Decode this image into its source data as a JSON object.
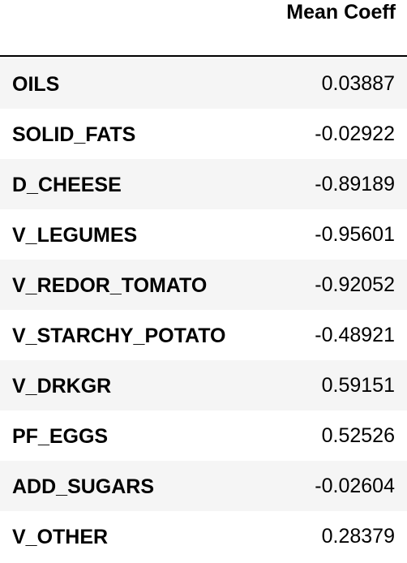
{
  "table": {
    "header": {
      "value_column": "Mean Coeff"
    },
    "rows": [
      {
        "name": "OILS",
        "value": "0.03887"
      },
      {
        "name": "SOLID_FATS",
        "value": "-0.02922"
      },
      {
        "name": "D_CHEESE",
        "value": "-0.89189"
      },
      {
        "name": "V_LEGUMES",
        "value": "-0.95601"
      },
      {
        "name": "V_REDOR_TOMATO",
        "value": "-0.92052"
      },
      {
        "name": "V_STARCHY_POTATO",
        "value": "-0.48921"
      },
      {
        "name": "V_DRKGR",
        "value": "0.59151"
      },
      {
        "name": "PF_EGGS",
        "value": "0.52526"
      },
      {
        "name": "ADD_SUGARS",
        "value": "-0.02604"
      },
      {
        "name": "V_OTHER",
        "value": "0.28379"
      }
    ]
  },
  "colors": {
    "stripe": "#f5f5f5",
    "background": "#ffffff",
    "rule": "#000000"
  }
}
